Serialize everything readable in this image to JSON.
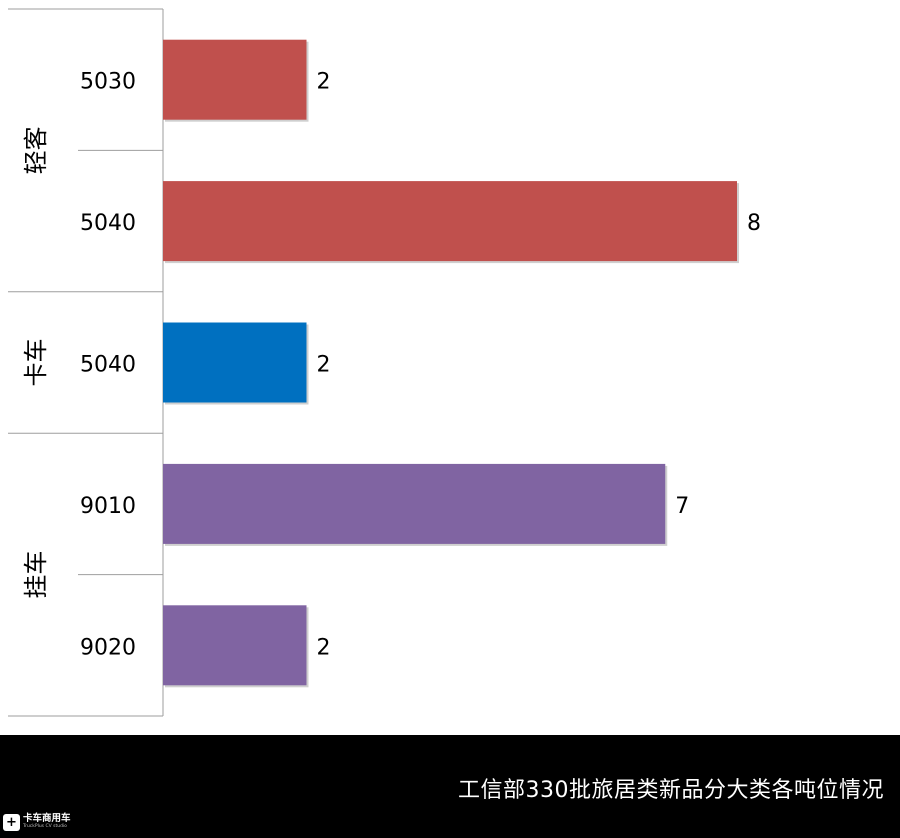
{
  "chart_data": {
    "type": "bar",
    "orientation": "horizontal",
    "groups": [
      {
        "name": "轻客",
        "color": "#C0504D",
        "items": [
          {
            "category": "5030",
            "value": 2
          },
          {
            "category": "5040",
            "value": 8
          }
        ]
      },
      {
        "name": "卡车",
        "color": "#0070C0",
        "items": [
          {
            "category": "5040",
            "value": 2
          }
        ]
      },
      {
        "name": "挂车",
        "color": "#8064A2",
        "items": [
          {
            "category": "9010",
            "value": 7
          },
          {
            "category": "9020",
            "value": 2
          }
        ]
      }
    ],
    "xlim": [
      0,
      8
    ],
    "grid": false,
    "legend": "none",
    "data_labels": true
  },
  "footer": {
    "caption": "工信部330批旅居类新品分大类各吨位情况",
    "logo_name": "卡车商用车",
    "logo_subtitle": "TruckPlus CV studio"
  }
}
